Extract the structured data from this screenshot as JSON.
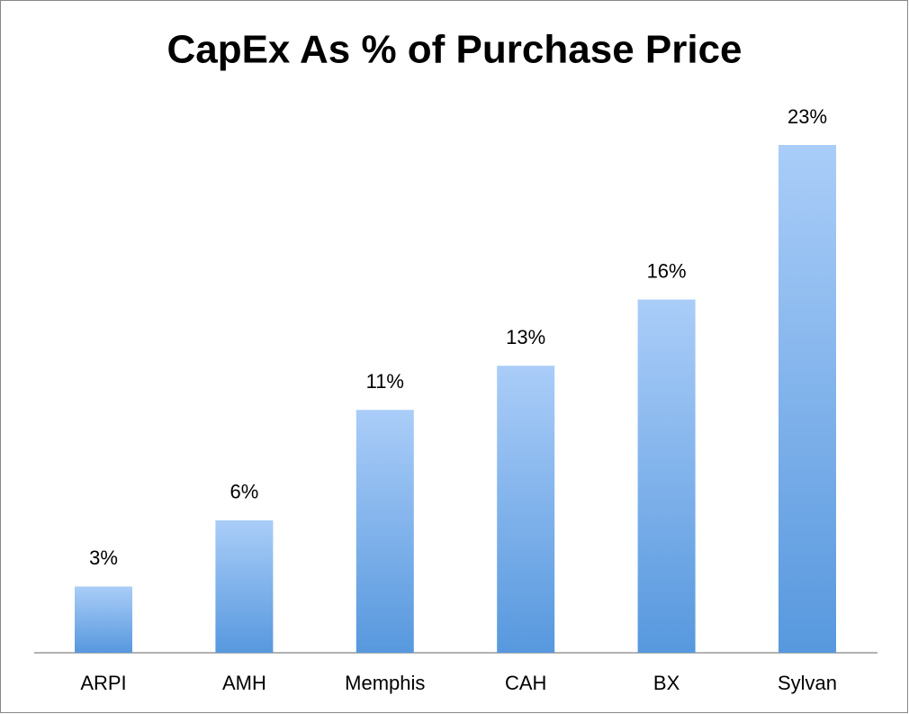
{
  "chart_data": {
    "type": "bar",
    "title": "CapEx As % of Purchase Price",
    "categories": [
      "ARPI",
      "AMH",
      "Memphis",
      "CAH",
      "BX",
      "Sylvan"
    ],
    "values": [
      3,
      6,
      11,
      13,
      16,
      23
    ],
    "value_labels": [
      "3%",
      "6%",
      "11%",
      "13%",
      "16%",
      "23%"
    ],
    "color": "#6fa6e6"
  }
}
